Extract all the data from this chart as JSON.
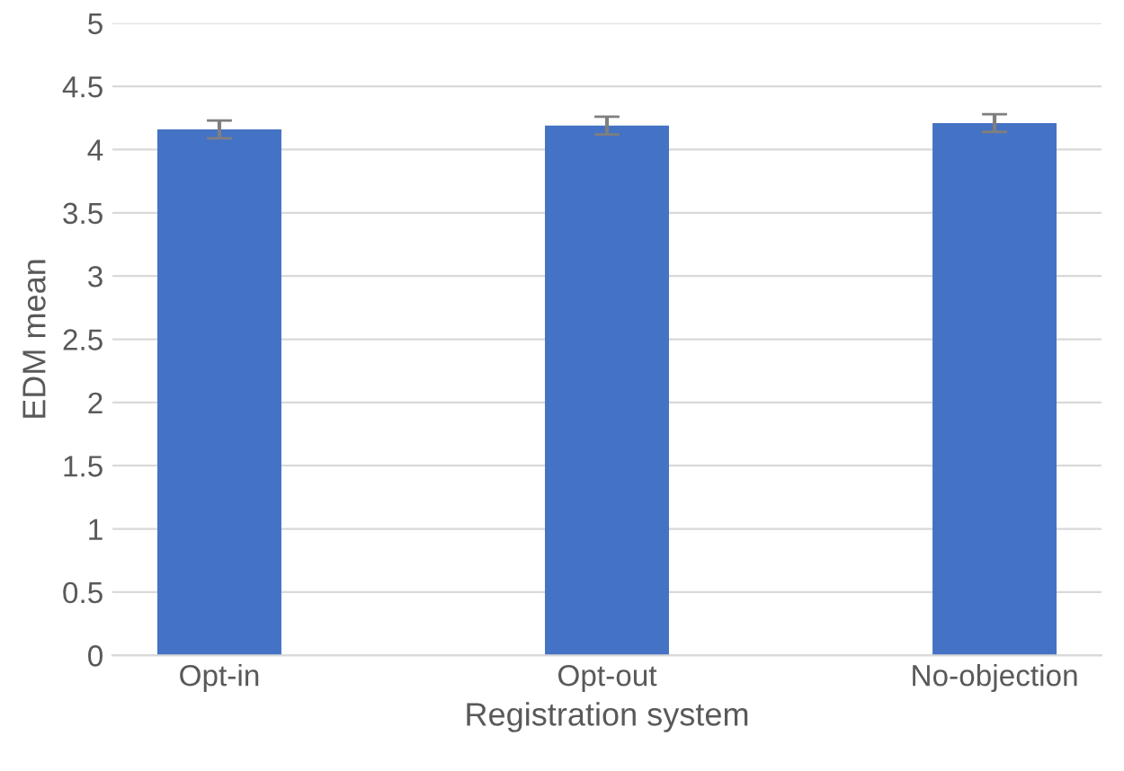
{
  "chart_data": {
    "type": "bar",
    "xlabel": "Registration system",
    "ylabel": "EDM mean",
    "categories": [
      "Opt-in",
      "Opt-out",
      "No-objection"
    ],
    "values": [
      4.16,
      4.19,
      4.21
    ],
    "errors": [
      0.07,
      0.07,
      0.07
    ],
    "color": "#4472c4",
    "ylim": [
      0,
      5
    ],
    "yticks": [
      0,
      0.5,
      1,
      1.5,
      2,
      2.5,
      3,
      3.5,
      4,
      4.5,
      5
    ],
    "grid": "y"
  }
}
